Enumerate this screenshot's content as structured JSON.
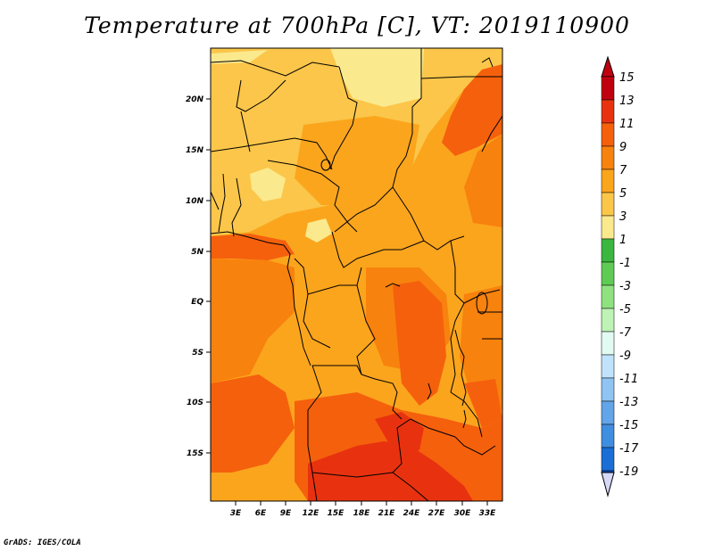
{
  "title": "Temperature at 700hPa [C], VT: 2019110900",
  "credit": "GrADS: IGES/COLA",
  "lat_labels": [
    "20N",
    "15N",
    "10N",
    "5N",
    "EQ",
    "5S",
    "10S",
    "15S"
  ],
  "lon_labels": [
    "3E",
    "6E",
    "9E",
    "12E",
    "15E",
    "18E",
    "21E",
    "24E",
    "27E",
    "30E",
    "33E"
  ],
  "colorbar": {
    "labels": [
      "15",
      "13",
      "11",
      "9",
      "7",
      "5",
      "3",
      "1",
      "-1",
      "-3",
      "-5",
      "-7",
      "-9",
      "-11",
      "-13",
      "-15",
      "-17",
      "-19"
    ],
    "colors": [
      "#c0000e",
      "#e8320f",
      "#f5600d",
      "#f8820e",
      "#fba51d",
      "#fbc64a",
      "#fbe98d",
      "#3bb63e",
      "#5fcb55",
      "#8fe27f",
      "#bff2b5",
      "#e1fbf3",
      "#c0e2fb",
      "#90c4f2",
      "#62a5e8",
      "#3f8ee0",
      "#1c6ed7",
      "#0d4ec7",
      "#082d9a",
      "#d6d8f7"
    ]
  },
  "map_colors": {
    "t6": "#fbe98d",
    "t7": "#fbc64a",
    "t8": "#fba51d",
    "t9": "#f8820e",
    "t10": "#f5600d",
    "t11": "#e8320f"
  }
}
